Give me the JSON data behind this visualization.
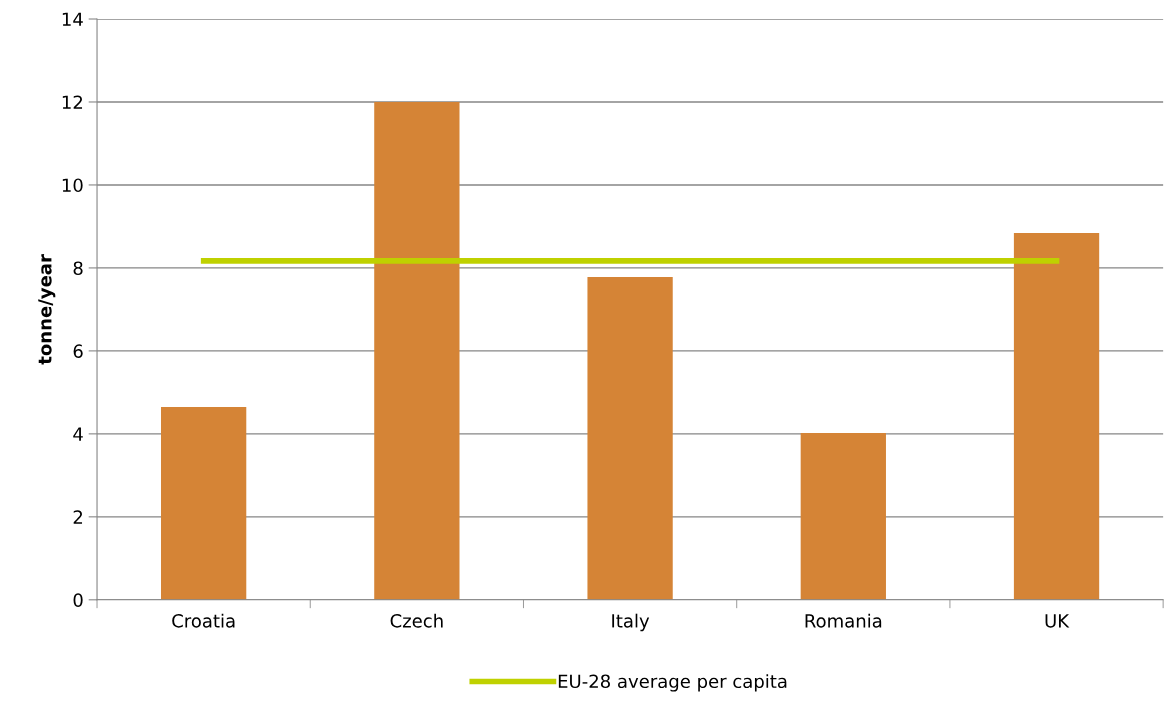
{
  "chart_data": {
    "type": "bar",
    "ylabel": "tonne/year",
    "categories": [
      "Croatia",
      "Czech",
      "Italy",
      "Romania",
      "UK"
    ],
    "series": [
      {
        "color": "#d58436",
        "values": [
          4.65,
          12.0,
          7.78,
          4.02,
          8.84
        ]
      },
      {
        "type": "line",
        "name": "EU-28 average per capita",
        "color": "#bfd100",
        "values": [
          8.17,
          8.17,
          8.17,
          8.17,
          8.17
        ]
      }
    ],
    "ylim": [
      0,
      14
    ],
    "yticks": [
      0,
      2,
      4,
      6,
      8,
      10,
      12,
      14
    ],
    "grid": "y",
    "legend": "bottom",
    "marker": "none"
  }
}
